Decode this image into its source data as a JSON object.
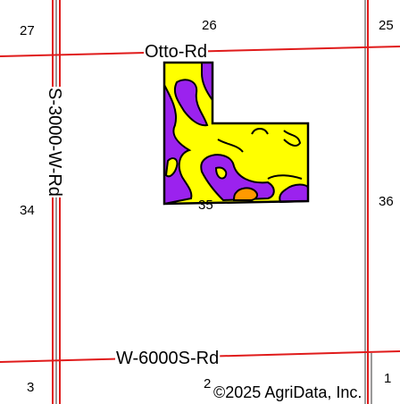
{
  "map": {
    "sections": {
      "n27": "27",
      "n26": "26",
      "n25": "25",
      "n34": "34",
      "n35": "35",
      "n36": "36",
      "n3": "3",
      "n2": "2",
      "n1": "1"
    },
    "roads": {
      "north": "Otto-Rd",
      "west": "S-3000-W-Rd",
      "south": "W-6000S-Rd"
    },
    "copyright": "©2025 AgriData, Inc.",
    "colors": {
      "road": "#e01b1b",
      "section_line": "#9a9a9a",
      "field_yellow": "#ffff00",
      "field_purple": "#9b22ee",
      "field_orange": "#ff9a00",
      "outline": "#000000"
    }
  }
}
